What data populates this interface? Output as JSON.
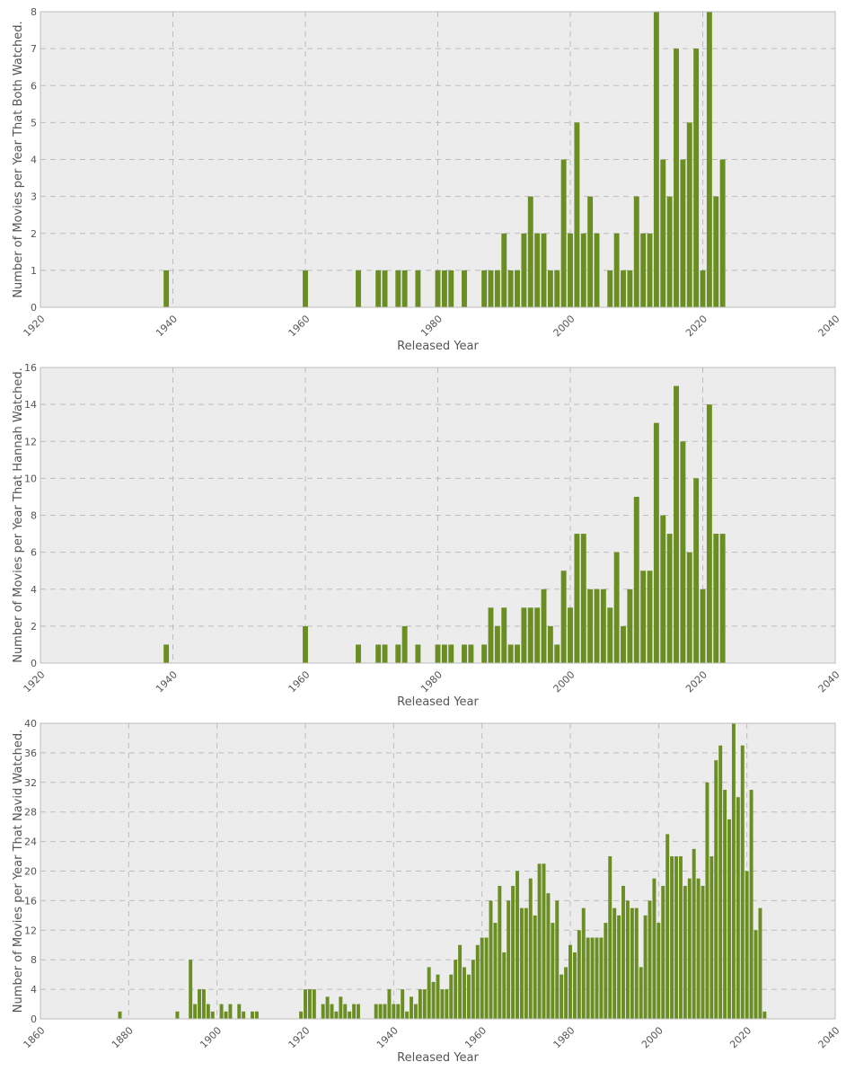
{
  "colors": {
    "bar": "#6b8e23",
    "plot_bg": "#ececec",
    "grid": "#bdbdbd",
    "frame": "#bcbcbc",
    "text": "#555555"
  },
  "chart_data": [
    {
      "type": "bar",
      "xlabel": "Released Year",
      "ylabel": "Number of Movies per Year That Both Watched.",
      "xlim": [
        1920,
        2040
      ],
      "ylim": [
        0,
        8
      ],
      "xticks": [
        1920,
        1940,
        1960,
        1980,
        2000,
        2020,
        2040
      ],
      "yticks": [
        0,
        1,
        2,
        3,
        4,
        5,
        6,
        7,
        8
      ],
      "grid": true,
      "x": [
        1939,
        1960,
        1968,
        1971,
        1972,
        1974,
        1975,
        1977,
        1980,
        1981,
        1982,
        1984,
        1987,
        1988,
        1989,
        1990,
        1991,
        1992,
        1993,
        1994,
        1995,
        1996,
        1997,
        1998,
        1999,
        2000,
        2001,
        2002,
        2003,
        2004,
        2006,
        2007,
        2008,
        2009,
        2010,
        2011,
        2012,
        2013,
        2014,
        2015,
        2016,
        2017,
        2018,
        2019,
        2020,
        2021,
        2022,
        2023
      ],
      "values": [
        1,
        1,
        1,
        1,
        1,
        1,
        1,
        1,
        1,
        1,
        1,
        1,
        1,
        1,
        1,
        2,
        1,
        1,
        2,
        3,
        2,
        2,
        1,
        1,
        4,
        2,
        5,
        2,
        3,
        2,
        1,
        2,
        1,
        1,
        3,
        2,
        2,
        8,
        4,
        3,
        7,
        4,
        5,
        7,
        1,
        8,
        3,
        4
      ]
    },
    {
      "type": "bar",
      "xlabel": "Released Year",
      "ylabel": "Number of Movies per Year That Hannah Watched.",
      "xlim": [
        1920,
        2040
      ],
      "ylim": [
        0,
        16
      ],
      "xticks": [
        1920,
        1940,
        1960,
        1980,
        2000,
        2020,
        2040
      ],
      "yticks": [
        0,
        2,
        4,
        6,
        8,
        10,
        12,
        14,
        16
      ],
      "grid": true,
      "x": [
        1939,
        1960,
        1968,
        1971,
        1972,
        1974,
        1975,
        1977,
        1980,
        1981,
        1982,
        1984,
        1985,
        1987,
        1988,
        1989,
        1990,
        1991,
        1992,
        1993,
        1994,
        1995,
        1996,
        1997,
        1998,
        1999,
        2000,
        2001,
        2002,
        2003,
        2004,
        2005,
        2006,
        2007,
        2008,
        2009,
        2010,
        2011,
        2012,
        2013,
        2014,
        2015,
        2016,
        2017,
        2018,
        2019,
        2020,
        2021,
        2022,
        2023
      ],
      "values": [
        1,
        2,
        1,
        1,
        1,
        1,
        2,
        1,
        1,
        1,
        1,
        1,
        1,
        1,
        3,
        2,
        3,
        1,
        1,
        3,
        3,
        3,
        4,
        2,
        1,
        5,
        3,
        7,
        7,
        4,
        4,
        4,
        3,
        6,
        2,
        4,
        9,
        5,
        5,
        13,
        8,
        7,
        15,
        12,
        6,
        10,
        4,
        14,
        7,
        7
      ]
    },
    {
      "type": "bar",
      "xlabel": "Released Year",
      "ylabel": "Number of Movies per Year That Navid Watched.",
      "xlim": [
        1860,
        2040
      ],
      "ylim": [
        0,
        40
      ],
      "xticks": [
        1860,
        1880,
        1900,
        1920,
        1940,
        1960,
        1980,
        2000,
        2020,
        2040
      ],
      "yticks": [
        0,
        4,
        8,
        12,
        16,
        20,
        24,
        28,
        32,
        36,
        40
      ],
      "grid": true,
      "x": [
        1878,
        1891,
        1894,
        1895,
        1896,
        1897,
        1898,
        1899,
        1901,
        1902,
        1903,
        1905,
        1906,
        1908,
        1909,
        1919,
        1920,
        1921,
        1922,
        1924,
        1925,
        1926,
        1927,
        1928,
        1929,
        1930,
        1931,
        1932,
        1936,
        1937,
        1938,
        1939,
        1940,
        1941,
        1942,
        1943,
        1944,
        1945,
        1946,
        1947,
        1948,
        1949,
        1950,
        1951,
        1952,
        1953,
        1954,
        1955,
        1956,
        1957,
        1958,
        1959,
        1960,
        1961,
        1962,
        1963,
        1964,
        1965,
        1966,
        1967,
        1968,
        1969,
        1970,
        1971,
        1972,
        1973,
        1974,
        1975,
        1976,
        1977,
        1978,
        1979,
        1980,
        1981,
        1982,
        1983,
        1984,
        1985,
        1986,
        1987,
        1988,
        1989,
        1990,
        1991,
        1992,
        1993,
        1994,
        1995,
        1996,
        1997,
        1998,
        1999,
        2000,
        2001,
        2002,
        2003,
        2004,
        2005,
        2006,
        2007,
        2008,
        2009,
        2010,
        2011,
        2012,
        2013,
        2014,
        2015,
        2016,
        2017,
        2018,
        2019,
        2020,
        2021,
        2022,
        2023,
        2024
      ],
      "values": [
        1,
        1,
        8,
        2,
        4,
        4,
        2,
        1,
        2,
        1,
        2,
        2,
        1,
        1,
        1,
        1,
        4,
        4,
        4,
        2,
        3,
        2,
        1,
        3,
        2,
        1,
        2,
        2,
        2,
        2,
        2,
        4,
        2,
        2,
        4,
        1,
        3,
        2,
        4,
        4,
        7,
        5,
        6,
        4,
        4,
        6,
        8,
        10,
        7,
        6,
        8,
        10,
        11,
        11,
        16,
        13,
        18,
        9,
        16,
        18,
        20,
        15,
        15,
        19,
        14,
        21,
        21,
        17,
        13,
        16,
        6,
        7,
        10,
        9,
        12,
        15,
        11,
        11,
        11,
        11,
        13,
        22,
        15,
        14,
        18,
        16,
        15,
        15,
        7,
        14,
        16,
        19,
        13,
        18,
        25,
        22,
        22,
        22,
        18,
        19,
        23,
        19,
        18,
        32,
        22,
        35,
        37,
        31,
        27,
        40,
        30,
        37,
        20,
        31,
        12,
        15,
        1
      ]
    }
  ]
}
